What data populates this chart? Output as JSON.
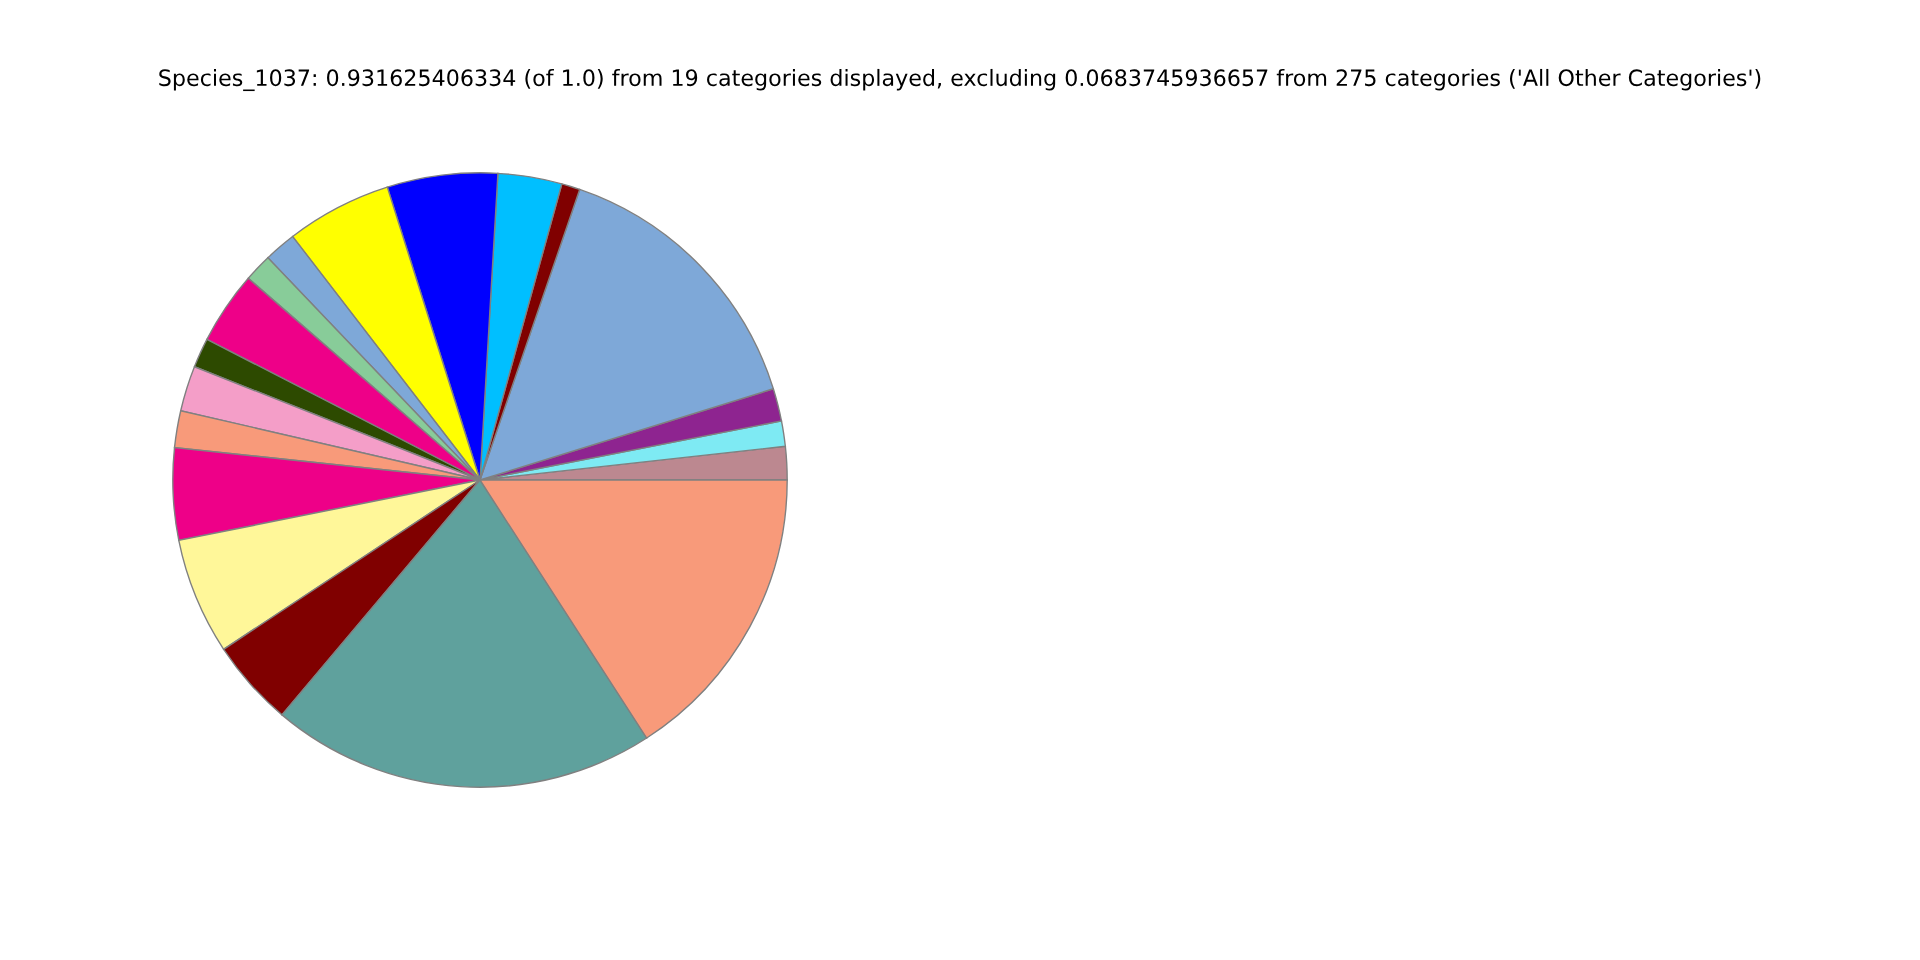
{
  "chart_data": {
    "type": "pie",
    "title": "Species_1037: 0.931625406334 (of 1.0) from 19 categories displayed, excluding 0.0683745936657 from 275 categories ('All Other Categories')",
    "categories": [
      null,
      null,
      null,
      null,
      null,
      null,
      null,
      null,
      null,
      null,
      null,
      null,
      null,
      null,
      null,
      null,
      null,
      null,
      null
    ],
    "values": [
      1.75,
      1.33,
      1.72,
      14.94,
      0.97,
      3.36,
      5.81,
      5.56,
      1.69,
      1.47,
      3.83,
      1.56,
      2.39,
      1.94,
      4.83,
      6.14,
      4.56,
      20.28,
      15.87
    ],
    "colors": [
      "#bc8890",
      "#7eeaf3",
      "#8e2490",
      "#7ea8d8",
      "#800000",
      "#00bfff",
      "#0000ff",
      "#ffff00",
      "#7ea8d8",
      "#88cc99",
      "#ee0088",
      "#2d4a00",
      "#f49ec8",
      "#f89a7a",
      "#ee0088",
      "#fff799",
      "#800000",
      "#5fa19d",
      "#f89a7a"
    ]
  }
}
